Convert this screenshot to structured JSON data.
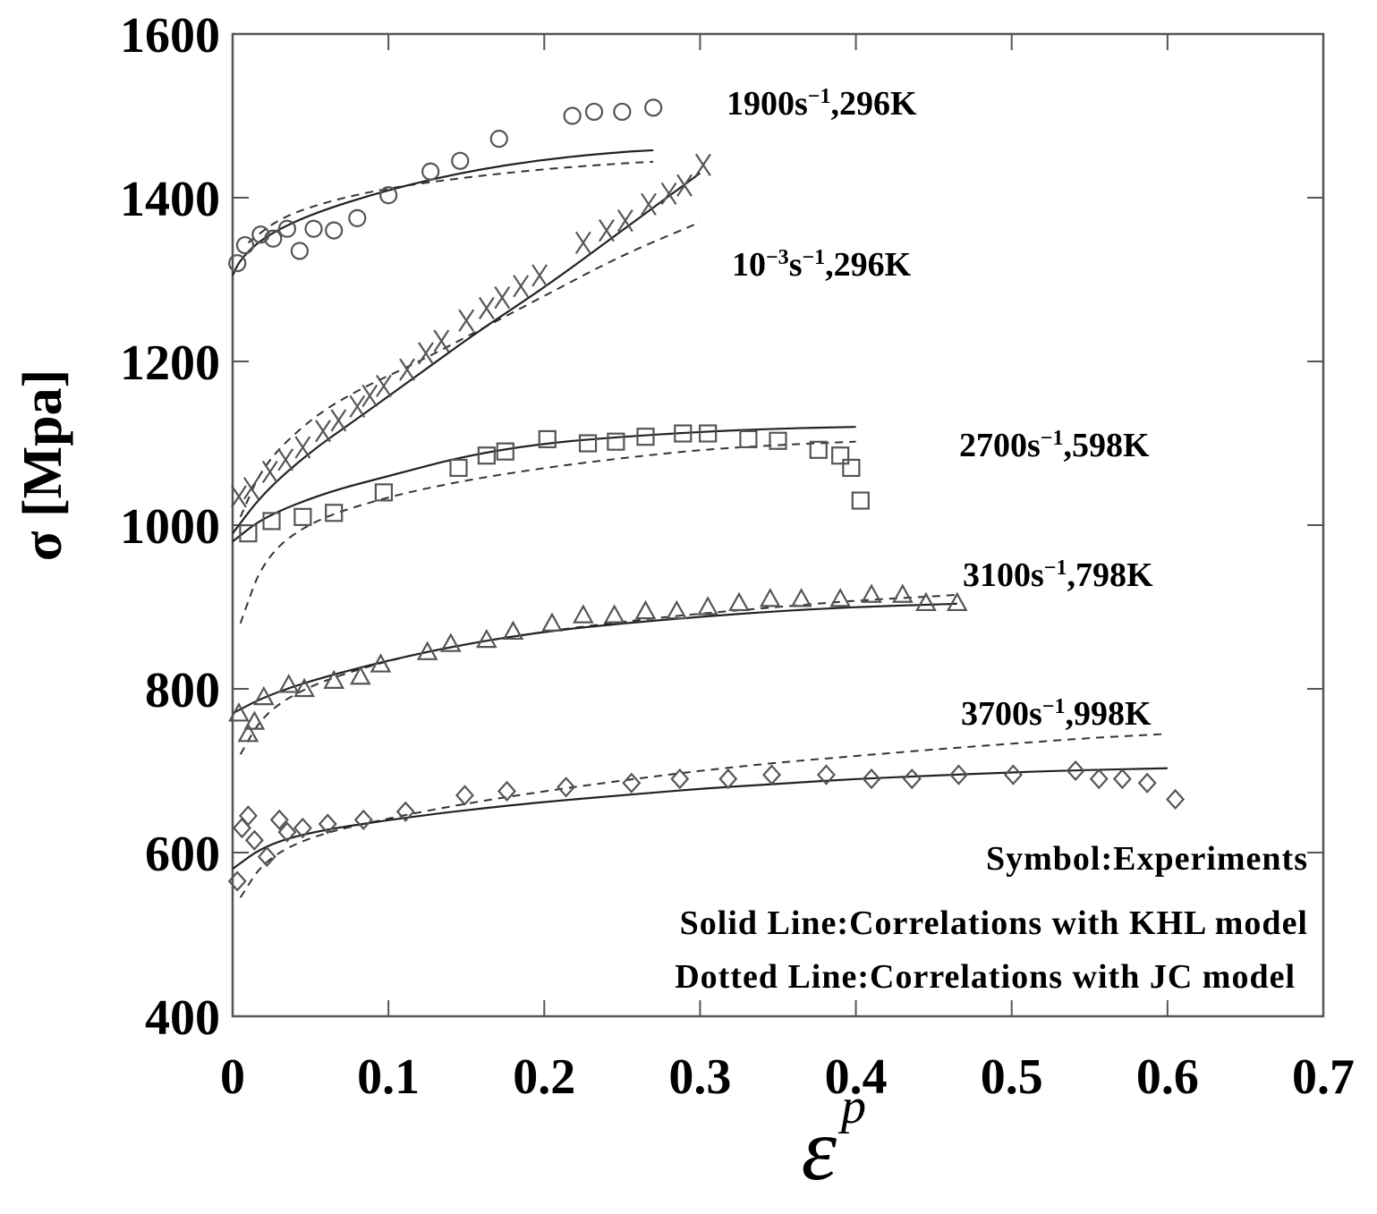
{
  "chart_data": {
    "type": "scatter",
    "title": "",
    "xlabel": "ε",
    "xlabel_superscript": "p",
    "ylabel": "σ [Mpa]",
    "xlim": [
      0,
      0.7
    ],
    "ylim": [
      400,
      1600
    ],
    "x_ticks": [
      "0",
      "0.1",
      "0.2",
      "0.3",
      "0.4",
      "0.5",
      "0.6",
      "0.7"
    ],
    "y_ticks": [
      "400",
      "600",
      "800",
      "1000",
      "1200",
      "1400",
      "1600"
    ],
    "legend": {
      "position": "bottom-right",
      "entries": [
        "Symbol:Experiments",
        "Solid Line:Correlations with KHL model",
        "Dotted Line:Correlations with JC model"
      ]
    },
    "series": [
      {
        "name": "1900s⁻¹,296K",
        "label_base": "1900s",
        "label_exp": "−1",
        "label_tail": ",296K",
        "marker": "circle",
        "experiment": [
          [
            0.003,
            1320
          ],
          [
            0.008,
            1342
          ],
          [
            0.018,
            1355
          ],
          [
            0.026,
            1350
          ],
          [
            0.035,
            1362
          ],
          [
            0.043,
            1335
          ],
          [
            0.052,
            1362
          ],
          [
            0.065,
            1360
          ],
          [
            0.08,
            1375
          ],
          [
            0.1,
            1403
          ],
          [
            0.127,
            1432
          ],
          [
            0.146,
            1445
          ],
          [
            0.171,
            1472
          ],
          [
            0.218,
            1500
          ],
          [
            0.232,
            1505
          ],
          [
            0.25,
            1505
          ],
          [
            0.27,
            1510
          ]
        ],
        "khl": [
          [
            0,
            1305
          ],
          [
            0.005,
            1325
          ],
          [
            0.02,
            1352
          ],
          [
            0.05,
            1380
          ],
          [
            0.1,
            1410
          ],
          [
            0.15,
            1432
          ],
          [
            0.2,
            1447
          ],
          [
            0.25,
            1456
          ],
          [
            0.27,
            1458
          ]
        ],
        "jc": [
          [
            0.01,
            1345
          ],
          [
            0.03,
            1375
          ],
          [
            0.06,
            1395
          ],
          [
            0.1,
            1412
          ],
          [
            0.15,
            1425
          ],
          [
            0.2,
            1435
          ],
          [
            0.25,
            1442
          ],
          [
            0.27,
            1444
          ]
        ]
      },
      {
        "name": "10⁻³s⁻¹,296K",
        "label_base": "10",
        "label_exp": "−3",
        "label_mid": "s",
        "label_exp2": "−1",
        "label_tail": ",296K",
        "marker": "cross",
        "experiment": [
          [
            0.004,
            1035
          ],
          [
            0.012,
            1045
          ],
          [
            0.024,
            1065
          ],
          [
            0.034,
            1080
          ],
          [
            0.045,
            1095
          ],
          [
            0.058,
            1115
          ],
          [
            0.068,
            1128
          ],
          [
            0.08,
            1145
          ],
          [
            0.088,
            1158
          ],
          [
            0.097,
            1170
          ],
          [
            0.112,
            1190
          ],
          [
            0.124,
            1210
          ],
          [
            0.134,
            1225
          ],
          [
            0.15,
            1250
          ],
          [
            0.163,
            1265
          ],
          [
            0.173,
            1278
          ],
          [
            0.185,
            1292
          ],
          [
            0.197,
            1305
          ],
          [
            0.225,
            1345
          ],
          [
            0.24,
            1360
          ],
          [
            0.252,
            1372
          ],
          [
            0.267,
            1392
          ],
          [
            0.28,
            1405
          ],
          [
            0.29,
            1415
          ],
          [
            0.302,
            1440
          ]
        ],
        "khl": [
          [
            0,
            990
          ],
          [
            0.02,
            1040
          ],
          [
            0.05,
            1090
          ],
          [
            0.08,
            1130
          ],
          [
            0.12,
            1185
          ],
          [
            0.16,
            1240
          ],
          [
            0.2,
            1290
          ],
          [
            0.25,
            1360
          ],
          [
            0.3,
            1430
          ]
        ],
        "jc": [
          [
            0.005,
            1010
          ],
          [
            0.02,
            1075
          ],
          [
            0.05,
            1130
          ],
          [
            0.08,
            1165
          ],
          [
            0.12,
            1200
          ],
          [
            0.16,
            1240
          ],
          [
            0.2,
            1280
          ],
          [
            0.25,
            1330
          ],
          [
            0.3,
            1370
          ]
        ]
      },
      {
        "name": "2700s⁻¹,598K",
        "label_base": "2700s",
        "label_exp": "−1",
        "label_tail": ",598K",
        "marker": "square",
        "experiment": [
          [
            0.01,
            990
          ],
          [
            0.025,
            1005
          ],
          [
            0.045,
            1010
          ],
          [
            0.065,
            1015
          ],
          [
            0.097,
            1040
          ],
          [
            0.145,
            1070
          ],
          [
            0.163,
            1085
          ],
          [
            0.175,
            1090
          ],
          [
            0.202,
            1105
          ],
          [
            0.228,
            1100
          ],
          [
            0.246,
            1102
          ],
          [
            0.265,
            1108
          ],
          [
            0.289,
            1112
          ],
          [
            0.305,
            1112
          ],
          [
            0.331,
            1105
          ],
          [
            0.35,
            1103
          ],
          [
            0.376,
            1092
          ],
          [
            0.39,
            1085
          ],
          [
            0.397,
            1070
          ],
          [
            0.403,
            1030
          ]
        ],
        "khl": [
          [
            0,
            980
          ],
          [
            0.02,
            1010
          ],
          [
            0.06,
            1040
          ],
          [
            0.1,
            1060
          ],
          [
            0.15,
            1085
          ],
          [
            0.2,
            1100
          ],
          [
            0.25,
            1108
          ],
          [
            0.3,
            1114
          ],
          [
            0.35,
            1118
          ],
          [
            0.4,
            1120
          ]
        ],
        "jc": [
          [
            0.005,
            880
          ],
          [
            0.02,
            960
          ],
          [
            0.05,
            1005
          ],
          [
            0.1,
            1035
          ],
          [
            0.15,
            1055
          ],
          [
            0.2,
            1070
          ],
          [
            0.25,
            1082
          ],
          [
            0.3,
            1092
          ],
          [
            0.35,
            1098
          ],
          [
            0.4,
            1102
          ]
        ]
      },
      {
        "name": "3100s⁻¹,798K",
        "label_base": "3100s",
        "label_exp": "−1",
        "label_tail": ",798K",
        "marker": "triangle",
        "experiment": [
          [
            0.004,
            770
          ],
          [
            0.01,
            745
          ],
          [
            0.014,
            760
          ],
          [
            0.02,
            790
          ],
          [
            0.036,
            805
          ],
          [
            0.046,
            800
          ],
          [
            0.065,
            810
          ],
          [
            0.082,
            815
          ],
          [
            0.095,
            830
          ],
          [
            0.125,
            845
          ],
          [
            0.14,
            855
          ],
          [
            0.163,
            860
          ],
          [
            0.18,
            870
          ],
          [
            0.205,
            880
          ],
          [
            0.225,
            890
          ],
          [
            0.245,
            890
          ],
          [
            0.265,
            895
          ],
          [
            0.285,
            895
          ],
          [
            0.305,
            900
          ],
          [
            0.325,
            905
          ],
          [
            0.345,
            910
          ],
          [
            0.365,
            910
          ],
          [
            0.39,
            910
          ],
          [
            0.41,
            915
          ],
          [
            0.43,
            915
          ],
          [
            0.445,
            905
          ],
          [
            0.465,
            905
          ]
        ],
        "khl": [
          [
            0,
            770
          ],
          [
            0.02,
            790
          ],
          [
            0.05,
            810
          ],
          [
            0.1,
            835
          ],
          [
            0.15,
            855
          ],
          [
            0.2,
            870
          ],
          [
            0.25,
            880
          ],
          [
            0.3,
            888
          ],
          [
            0.35,
            895
          ],
          [
            0.4,
            900
          ],
          [
            0.45,
            903
          ],
          [
            0.465,
            904
          ]
        ],
        "jc": [
          [
            0.005,
            720
          ],
          [
            0.02,
            770
          ],
          [
            0.05,
            805
          ],
          [
            0.1,
            835
          ],
          [
            0.15,
            855
          ],
          [
            0.2,
            870
          ],
          [
            0.25,
            882
          ],
          [
            0.3,
            892
          ],
          [
            0.35,
            900
          ],
          [
            0.4,
            908
          ],
          [
            0.45,
            913
          ],
          [
            0.465,
            915
          ]
        ]
      },
      {
        "name": "3700s⁻¹,998K",
        "label_base": "3700s",
        "label_exp": "−1",
        "label_tail": ",998K",
        "marker": "diamond",
        "experiment": [
          [
            0.003,
            565
          ],
          [
            0.006,
            630
          ],
          [
            0.01,
            645
          ],
          [
            0.014,
            615
          ],
          [
            0.022,
            595
          ],
          [
            0.03,
            640
          ],
          [
            0.035,
            625
          ],
          [
            0.045,
            630
          ],
          [
            0.061,
            635
          ],
          [
            0.084,
            640
          ],
          [
            0.111,
            650
          ],
          [
            0.149,
            670
          ],
          [
            0.176,
            675
          ],
          [
            0.214,
            680
          ],
          [
            0.256,
            685
          ],
          [
            0.287,
            690
          ],
          [
            0.318,
            690
          ],
          [
            0.346,
            695
          ],
          [
            0.381,
            695
          ],
          [
            0.41,
            690
          ],
          [
            0.436,
            690
          ],
          [
            0.466,
            695
          ],
          [
            0.501,
            695
          ],
          [
            0.541,
            700
          ],
          [
            0.556,
            690
          ],
          [
            0.571,
            690
          ],
          [
            0.587,
            685
          ],
          [
            0.605,
            665
          ]
        ],
        "khl": [
          [
            0,
            580
          ],
          [
            0.02,
            608
          ],
          [
            0.05,
            625
          ],
          [
            0.1,
            640
          ],
          [
            0.15,
            652
          ],
          [
            0.2,
            662
          ],
          [
            0.25,
            670
          ],
          [
            0.3,
            678
          ],
          [
            0.35,
            684
          ],
          [
            0.4,
            690
          ],
          [
            0.45,
            694
          ],
          [
            0.5,
            698
          ],
          [
            0.55,
            701
          ],
          [
            0.6,
            703
          ]
        ],
        "jc": [
          [
            0.005,
            545
          ],
          [
            0.02,
            590
          ],
          [
            0.05,
            620
          ],
          [
            0.1,
            642
          ],
          [
            0.15,
            660
          ],
          [
            0.2,
            675
          ],
          [
            0.25,
            688
          ],
          [
            0.3,
            700
          ],
          [
            0.35,
            710
          ],
          [
            0.4,
            718
          ],
          [
            0.45,
            726
          ],
          [
            0.5,
            733
          ],
          [
            0.55,
            740
          ],
          [
            0.6,
            745
          ]
        ]
      }
    ]
  }
}
